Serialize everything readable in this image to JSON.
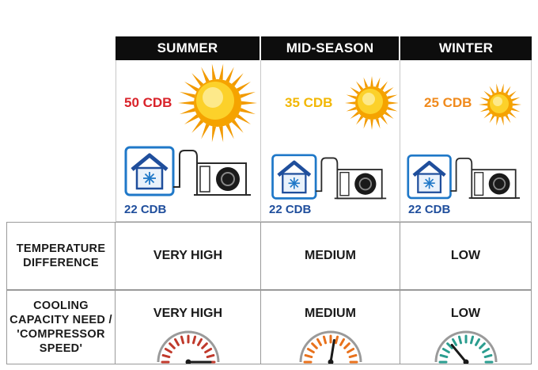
{
  "columns": [
    {
      "season": "SUMMER",
      "outside_temp": "50 CDB",
      "inside_temp": "22 CDB",
      "temp_color": "#d9232a",
      "temperature_difference": "VERY HIGH",
      "cooling_capacity": "VERY HIGH",
      "gauge_level": 1.0,
      "gauge_color": "#c0392b"
    },
    {
      "season": "MID-SEASON",
      "outside_temp": "35 CDB",
      "inside_temp": "22 CDB",
      "temp_color": "#f2b705",
      "temperature_difference": "MEDIUM",
      "cooling_capacity": "MEDIUM",
      "gauge_level": 0.55,
      "gauge_color": "#e8711c"
    },
    {
      "season": "WINTER",
      "outside_temp": "25 CDB",
      "inside_temp": "22 CDB",
      "temp_color": "#f08a1c",
      "temperature_difference": "LOW",
      "cooling_capacity": "LOW",
      "gauge_level": 0.28,
      "gauge_color": "#2a9d8f"
    }
  ],
  "row_labels": {
    "temperature_difference": "TEMPERATURE DIFFERENCE",
    "cooling_capacity": "COOLING CAPACITY NEED / 'COMPRESSOR SPEED'"
  },
  "colors": {
    "header_bg": "#0d0d0d",
    "indoor_blue": "#1f4e9c",
    "sun_core": "#f7b500",
    "sun_rays": "#f29a00"
  },
  "icons": [
    "sun-icon",
    "house-snowflake-icon",
    "outdoor-unit-icon",
    "gauge-icon"
  ]
}
